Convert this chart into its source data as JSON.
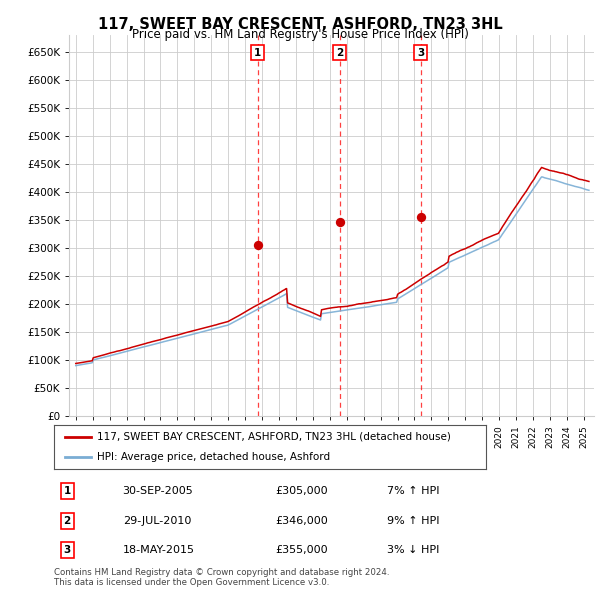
{
  "title": "117, SWEET BAY CRESCENT, ASHFORD, TN23 3HL",
  "subtitle": "Price paid vs. HM Land Registry's House Price Index (HPI)",
  "ylim": [
    0,
    680000
  ],
  "yticks": [
    0,
    50000,
    100000,
    150000,
    200000,
    250000,
    300000,
    350000,
    400000,
    450000,
    500000,
    550000,
    600000,
    650000
  ],
  "line1_color": "#cc0000",
  "line2_color": "#7aadd4",
  "grid_color": "#cccccc",
  "bg_color": "#ffffff",
  "transactions": [
    {
      "date": 2005.75,
      "price": 305000,
      "label": "1"
    },
    {
      "date": 2010.58,
      "price": 346000,
      "label": "2"
    },
    {
      "date": 2015.38,
      "price": 355000,
      "label": "3"
    }
  ],
  "transaction_table": [
    {
      "num": "1",
      "date": "30-SEP-2005",
      "price": "£305,000",
      "pct": "7%",
      "dir": "↑"
    },
    {
      "num": "2",
      "date": "29-JUL-2010",
      "price": "£346,000",
      "pct": "9%",
      "dir": "↑"
    },
    {
      "num": "3",
      "date": "18-MAY-2015",
      "price": "£355,000",
      "pct": "3%",
      "dir": "↓"
    }
  ],
  "legend1": "117, SWEET BAY CRESCENT, ASHFORD, TN23 3HL (detached house)",
  "legend2": "HPI: Average price, detached house, Ashford",
  "footer": "Contains HM Land Registry data © Crown copyright and database right 2024.\nThis data is licensed under the Open Government Licence v3.0."
}
